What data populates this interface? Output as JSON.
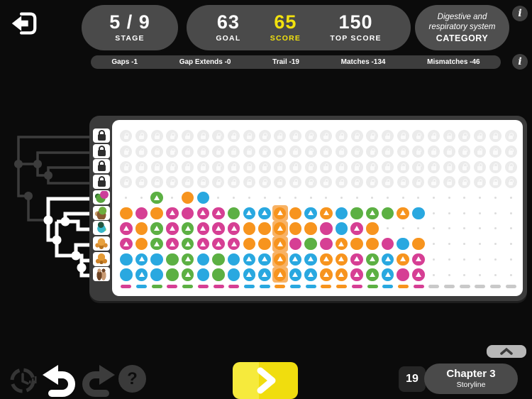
{
  "header": {
    "back_icon": "back-arrow",
    "stage": {
      "value": "5 / 9",
      "label": "STAGE"
    },
    "goal": {
      "value": "63",
      "label": "GOAL"
    },
    "score": {
      "value": "65",
      "label": "SCORE"
    },
    "top_score": {
      "value": "150",
      "label": "TOP SCORE"
    },
    "category": {
      "line1": "Digestive and",
      "line2": "respiratory system",
      "label": "CATEGORY"
    },
    "info_icon": "i"
  },
  "stats_bar": {
    "items": [
      "Gaps -1",
      "Gap Extends -0",
      "Trail -19",
      "Matches -134",
      "Mismatches -46"
    ],
    "info_icon": "i"
  },
  "colors": {
    "orange": "#f7941e",
    "pink": "#d63f94",
    "green": "#5cb043",
    "blue": "#29a8e0",
    "yellow": "#f2e20e",
    "highlight_square": "#f8b264",
    "consensus_gray": "#c9c9c9",
    "pill_gray": "#4a4a4a"
  },
  "grid": {
    "columns": 26,
    "highlight_column": 11,
    "row_icons": [
      "lock",
      "lock",
      "lock",
      "lock",
      "moth-creature",
      "beetle-creature",
      "globe-creature",
      "crab-creature",
      "scorpion-creature",
      "human-pair"
    ],
    "rows": [
      {
        "type": "locked"
      },
      {
        "type": "locked"
      },
      {
        "type": "locked"
      },
      {
        "type": "locked"
      },
      {
        "type": "tiles",
        "cells": [
          ".",
          ".",
          "gt",
          ".",
          "o",
          "b",
          ".",
          ".",
          ".",
          ".",
          ".",
          ".",
          ".",
          ".",
          ".",
          ".",
          ".",
          ".",
          ".",
          ".",
          ".",
          ".",
          ".",
          ".",
          ".",
          "."
        ]
      },
      {
        "type": "tiles",
        "cells": [
          "o",
          "p",
          "o",
          "pt",
          "p",
          "pt",
          "pt",
          "g",
          "bt",
          "bt",
          "ot!",
          "o",
          "bt",
          "ot",
          "b",
          "g",
          "gt",
          "g",
          "ot",
          "b",
          ".",
          ".",
          ".",
          ".",
          ".",
          "."
        ]
      },
      {
        "type": "tiles",
        "cells": [
          "pt",
          "o",
          "gt",
          "pt",
          "gt",
          "pt",
          "pt",
          "pt",
          "o",
          "o",
          "ot!",
          "o",
          "o",
          "p",
          "b",
          "pt",
          "o",
          ".",
          ".",
          ".",
          ".",
          ".",
          ".",
          ".",
          ".",
          "."
        ]
      },
      {
        "type": "tiles",
        "cells": [
          "pt",
          "o",
          "gt",
          "pt",
          "gt",
          "pt",
          "pt",
          "pt",
          "o",
          "o",
          "ot!",
          "p",
          "g",
          "p",
          "ot",
          "o",
          "o",
          "p",
          "b",
          "o",
          ".",
          ".",
          ".",
          ".",
          ".",
          "."
        ]
      },
      {
        "type": "tiles",
        "cells": [
          "b",
          "bt",
          "b",
          "g",
          "gt",
          "b",
          "g",
          "b",
          "bt",
          "bt",
          "ot!",
          "bt",
          "bt",
          "ot",
          "ot",
          "pt",
          "gt",
          "bt",
          "ot",
          "pt",
          ".",
          ".",
          ".",
          ".",
          ".",
          "."
        ]
      },
      {
        "type": "tiles",
        "cells": [
          "b",
          "bt",
          "b",
          "g",
          "gt",
          "b",
          "g",
          "b",
          "bt",
          "bt",
          "ot!",
          "bt",
          "bt",
          "ot",
          "ot",
          "pt",
          "gt",
          "bt",
          "p",
          "pt",
          ".",
          ".",
          ".",
          ".",
          ".",
          "."
        ]
      }
    ],
    "consensus": [
      "p",
      "b",
      "g",
      "p",
      "g",
      "p",
      "p",
      "p",
      "b",
      "b",
      "o",
      "b",
      "b",
      "o",
      "o",
      "p",
      "g",
      "b",
      "o",
      "p",
      "-",
      "-",
      "-",
      "-",
      "-",
      "-"
    ]
  },
  "footer": {
    "history_button": "history-clock",
    "undo_button": "undo",
    "redo_button": "redo",
    "help_label": "?",
    "play_button": "play",
    "collapse_button": "chevron-up",
    "level_badge": "19",
    "chapter": {
      "title": "Chapter 3",
      "subtitle": "Storyline"
    }
  }
}
